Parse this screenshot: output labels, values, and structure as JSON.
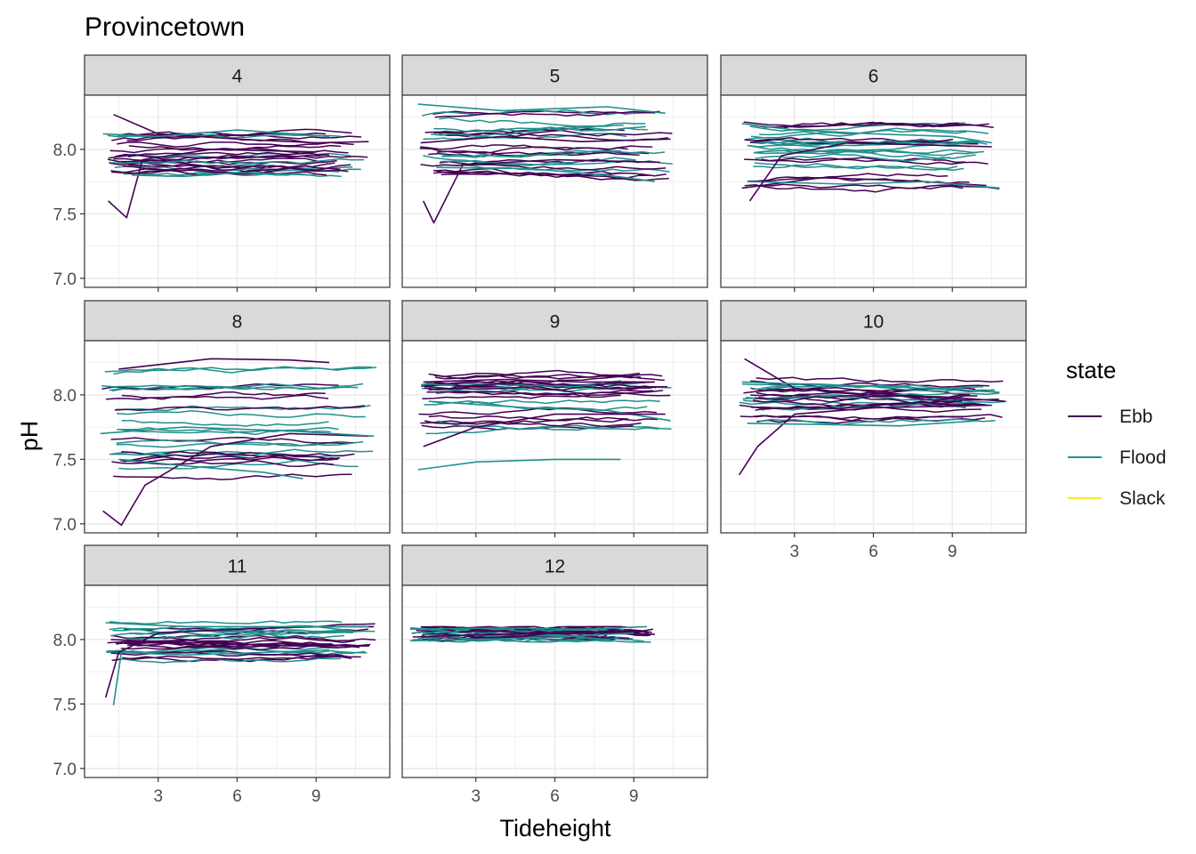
{
  "chart_data": {
    "type": "line",
    "title": "Provincetown",
    "xlabel": "Tideheight",
    "ylabel": "pH",
    "xlim": [
      0.2,
      11.8
    ],
    "ylim": [
      6.93,
      8.42
    ],
    "x_ticks": [
      3,
      6,
      9
    ],
    "x_tick_labels": [
      "3",
      "6",
      "9"
    ],
    "y_ticks": [
      7.0,
      7.5,
      8.0
    ],
    "y_tick_labels": [
      "7.0",
      "7.5",
      "8.0"
    ],
    "grid": true,
    "facet_by": "month",
    "legend": {
      "title": "state",
      "position": "right",
      "entries": [
        {
          "name": "Ebb",
          "color": "#440154"
        },
        {
          "name": "Flood",
          "color": "#21908C"
        },
        {
          "name": "Slack",
          "color": "#FDE725"
        }
      ]
    },
    "panels": [
      {
        "label": "4",
        "x_range": [
          1.0,
          11.0
        ],
        "summary_ph": {
          "min": 7.47,
          "max": 8.27,
          "typical_low": 7.78,
          "typical_high": 8.14
        },
        "series": [
          {
            "state": "Ebb",
            "points": [
              [
                1.3,
                8.27
              ],
              [
                3,
                8.12
              ],
              [
                6,
                8.08
              ],
              [
                9,
                8.05
              ],
              [
                11.0,
                8.06
              ]
            ]
          },
          {
            "state": "Ebb",
            "points": [
              [
                1.1,
                7.6
              ],
              [
                1.8,
                7.47
              ],
              [
                2.4,
                7.92
              ],
              [
                5,
                8.0
              ],
              [
                9,
                7.98
              ]
            ]
          },
          {
            "state": "Flood",
            "points": [
              [
                2.0,
                7.8
              ],
              [
                4,
                7.79
              ],
              [
                6,
                7.82
              ],
              [
                9,
                7.8
              ]
            ]
          },
          {
            "state": "Flood",
            "points": [
              [
                0.9,
                8.12
              ],
              [
                3,
                8.1
              ],
              [
                6,
                8.15
              ],
              [
                9.5,
                8.1
              ]
            ]
          }
        ]
      },
      {
        "label": "5",
        "x_range": [
          0.8,
          10.5
        ],
        "summary_ph": {
          "min": 7.43,
          "max": 8.36,
          "typical_low": 7.76,
          "typical_high": 8.34
        },
        "series": [
          {
            "state": "Ebb",
            "points": [
              [
                1.0,
                7.6
              ],
              [
                1.4,
                7.43
              ],
              [
                2.5,
                7.88
              ],
              [
                6,
                7.92
              ],
              [
                10,
                7.9
              ]
            ]
          },
          {
            "state": "Flood",
            "points": [
              [
                0.8,
                8.35
              ],
              [
                4,
                8.3
              ],
              [
                8,
                8.33
              ],
              [
                10.2,
                8.28
              ]
            ]
          },
          {
            "state": "Flood",
            "points": [
              [
                1.5,
                7.86
              ],
              [
                5,
                7.85
              ],
              [
                8,
                7.8
              ],
              [
                9.8,
                7.75
              ]
            ]
          },
          {
            "state": "Ebb",
            "points": [
              [
                0.9,
                8.05
              ],
              [
                4,
                8.1
              ],
              [
                7,
                8.06
              ],
              [
                10.4,
                8.08
              ]
            ]
          }
        ]
      },
      {
        "label": "6",
        "x_range": [
          1.0,
          10.8
        ],
        "summary_ph": {
          "min": 7.6,
          "max": 8.22,
          "typical_low": 7.68,
          "typical_high": 8.2
        },
        "series": [
          {
            "state": "Flood",
            "points": [
              [
                1.0,
                8.2
              ],
              [
                3,
                8.15
              ],
              [
                6,
                8.12
              ],
              [
                9,
                8.1
              ],
              [
                10.5,
                8.05
              ]
            ]
          },
          {
            "state": "Ebb",
            "points": [
              [
                1.0,
                7.7
              ],
              [
                4,
                7.78
              ],
              [
                7,
                7.76
              ],
              [
                10.3,
                7.72
              ]
            ]
          },
          {
            "state": "Flood",
            "points": [
              [
                1.2,
                7.75
              ],
              [
                5,
                7.73
              ],
              [
                8,
                7.75
              ],
              [
                10.8,
                7.7
              ]
            ]
          },
          {
            "state": "Ebb",
            "points": [
              [
                1.3,
                7.6
              ],
              [
                2.5,
                7.95
              ],
              [
                5,
                8.05
              ],
              [
                10.5,
                8.02
              ]
            ]
          }
        ]
      },
      {
        "label": "8",
        "x_range": [
          0.8,
          11.3
        ],
        "summary_ph": {
          "min": 6.99,
          "max": 8.29,
          "typical_low": 7.36,
          "typical_high": 8.27
        },
        "series": [
          {
            "state": "Ebb",
            "points": [
              [
                1.5,
                8.2
              ],
              [
                5,
                8.28
              ],
              [
                8,
                8.27
              ],
              [
                9.5,
                8.25
              ]
            ]
          },
          {
            "state": "Ebb",
            "points": [
              [
                0.9,
                7.1
              ],
              [
                1.6,
                6.99
              ],
              [
                2.5,
                7.3
              ],
              [
                5,
                7.6
              ],
              [
                8,
                7.7
              ],
              [
                11,
                7.68
              ]
            ]
          },
          {
            "state": "Flood",
            "points": [
              [
                1.5,
                7.5
              ],
              [
                4,
                7.45
              ],
              [
                7,
                7.4
              ],
              [
                8.5,
                7.35
              ]
            ]
          },
          {
            "state": "Flood",
            "points": [
              [
                0.8,
                7.7
              ],
              [
                4,
                7.75
              ],
              [
                8,
                7.72
              ],
              [
                11.2,
                7.68
              ]
            ]
          }
        ]
      },
      {
        "label": "9",
        "x_range": [
          0.8,
          10.5
        ],
        "summary_ph": {
          "min": 7.42,
          "max": 8.19,
          "typical_low": 7.5,
          "typical_high": 8.15
        },
        "series": [
          {
            "state": "Flood",
            "points": [
              [
                0.8,
                7.42
              ],
              [
                3,
                7.48
              ],
              [
                6,
                7.5
              ],
              [
                8.5,
                7.5
              ]
            ]
          },
          {
            "state": "Ebb",
            "points": [
              [
                1.0,
                8.1
              ],
              [
                4,
                8.12
              ],
              [
                7,
                8.1
              ],
              [
                9.8,
                8.1
              ]
            ]
          },
          {
            "state": "Flood",
            "points": [
              [
                1.2,
                7.95
              ],
              [
                5,
                7.9
              ],
              [
                8,
                7.88
              ],
              [
                10.4,
                7.8
              ]
            ]
          },
          {
            "state": "Ebb",
            "points": [
              [
                1.0,
                7.6
              ],
              [
                3,
                7.75
              ],
              [
                6,
                7.85
              ],
              [
                10.2,
                7.85
              ]
            ]
          }
        ]
      },
      {
        "label": "10",
        "x_range": [
          0.9,
          11.1
        ],
        "summary_ph": {
          "min": 7.38,
          "max": 8.28,
          "typical_low": 7.75,
          "typical_high": 8.1
        },
        "series": [
          {
            "state": "Ebb",
            "points": [
              [
                1.1,
                8.28
              ],
              [
                3,
                8.05
              ],
              [
                6,
                8.0
              ],
              [
                9,
                7.98
              ],
              [
                11.0,
                7.95
              ]
            ]
          },
          {
            "state": "Ebb",
            "points": [
              [
                0.9,
                7.38
              ],
              [
                1.6,
                7.6
              ],
              [
                3,
                7.85
              ],
              [
                6,
                7.9
              ],
              [
                10.5,
                7.92
              ]
            ]
          },
          {
            "state": "Flood",
            "points": [
              [
                1.2,
                7.78
              ],
              [
                4,
                7.77
              ],
              [
                7,
                7.76
              ],
              [
                10.0,
                7.8
              ]
            ]
          },
          {
            "state": "Flood",
            "points": [
              [
                1.0,
                8.1
              ],
              [
                4,
                8.08
              ],
              [
                7,
                8.06
              ],
              [
                10.8,
                8.02
              ]
            ]
          }
        ]
      },
      {
        "label": "11",
        "x_range": [
          1.0,
          11.3
        ],
        "summary_ph": {
          "min": 7.49,
          "max": 8.15,
          "typical_low": 7.85,
          "typical_high": 8.13
        },
        "series": [
          {
            "state": "Ebb",
            "points": [
              [
                1.0,
                7.55
              ],
              [
                1.5,
                7.9
              ],
              [
                3,
                8.05
              ],
              [
                6,
                8.08
              ],
              [
                9,
                8.1
              ],
              [
                11.2,
                8.1
              ]
            ]
          },
          {
            "state": "Flood",
            "points": [
              [
                1.3,
                7.49
              ],
              [
                1.6,
                7.9
              ],
              [
                4,
                7.88
              ],
              [
                7,
                7.9
              ],
              [
                9.5,
                7.92
              ]
            ]
          },
          {
            "state": "Flood",
            "points": [
              [
                1.0,
                8.13
              ],
              [
                4,
                8.1
              ],
              [
                7,
                8.1
              ],
              [
                11.0,
                8.1
              ]
            ]
          },
          {
            "state": "Ebb",
            "points": [
              [
                1.2,
                8.0
              ],
              [
                5,
                7.97
              ],
              [
                8,
                7.95
              ],
              [
                9.8,
                7.95
              ]
            ]
          }
        ]
      },
      {
        "label": "12",
        "x_range": [
          0.5,
          9.8
        ],
        "summary_ph": {
          "min": 7.98,
          "max": 8.1,
          "typical_low": 8.0,
          "typical_high": 8.09
        },
        "series": [
          {
            "state": "Flood",
            "points": [
              [
                0.5,
                8.08
              ],
              [
                4,
                8.09
              ],
              [
                7,
                8.08
              ],
              [
                9.5,
                8.1
              ]
            ]
          },
          {
            "state": "Ebb",
            "points": [
              [
                0.6,
                8.02
              ],
              [
                4,
                8.04
              ],
              [
                7,
                8.05
              ],
              [
                9.8,
                8.04
              ]
            ]
          },
          {
            "state": "Flood",
            "points": [
              [
                0.5,
                7.99
              ],
              [
                3,
                8.0
              ],
              [
                6,
                8.02
              ],
              [
                9.0,
                8.05
              ]
            ]
          }
        ]
      }
    ]
  }
}
